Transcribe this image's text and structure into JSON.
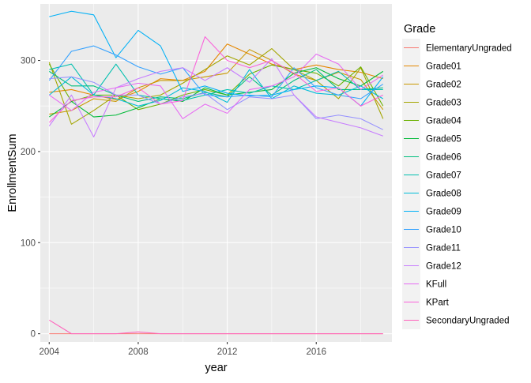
{
  "chart_data": {
    "type": "line",
    "xlabel": "year",
    "ylabel": "EnrollmentSum",
    "xlim": [
      2003.6,
      2019.4
    ],
    "ylim": [
      -9,
      362
    ],
    "x_ticks": [
      2004,
      2008,
      2012,
      2016
    ],
    "y_ticks": [
      0,
      100,
      200,
      300
    ],
    "grid": true,
    "panel_background": "#EBEBEB",
    "legend": {
      "title": "Grade",
      "position": "right"
    },
    "x": [
      2004,
      2005,
      2006,
      2007,
      2008,
      2009,
      2010,
      2011,
      2012,
      2013,
      2014,
      2015,
      2016,
      2017,
      2018,
      2019
    ],
    "series": [
      {
        "name": "ElementaryUngraded",
        "color": "#F8766D",
        "values": [
          0,
          0,
          0,
          0,
          0,
          0,
          0,
          0,
          0,
          0,
          0,
          0,
          0,
          0,
          0,
          0
        ]
      },
      {
        "name": "Grade01",
        "color": "#E58700",
        "values": [
          265,
          268,
          262,
          257,
          266,
          280,
          278,
          288,
          318,
          307,
          296,
          290,
          295,
          290,
          287,
          280
        ]
      },
      {
        "name": "Grade02",
        "color": "#C99800",
        "values": [
          241,
          245,
          258,
          255,
          270,
          278,
          278,
          282,
          286,
          312,
          300,
          285,
          278,
          287,
          279,
          246
        ]
      },
      {
        "name": "Grade03",
        "color": "#A3A500",
        "values": [
          298,
          230,
          245,
          262,
          258,
          262,
          275,
          290,
          305,
          295,
          313,
          290,
          278,
          258,
          292,
          236
        ]
      },
      {
        "name": "Grade04",
        "color": "#6BB100",
        "values": [
          296,
          255,
          262,
          262,
          246,
          252,
          262,
          268,
          262,
          285,
          295,
          290,
          286,
          272,
          293,
          250
        ]
      },
      {
        "name": "Grade05",
        "color": "#00BA38",
        "values": [
          238,
          255,
          238,
          240,
          248,
          258,
          255,
          270,
          262,
          265,
          268,
          286,
          292,
          280,
          272,
          288
        ]
      },
      {
        "name": "Grade06",
        "color": "#00BF7D",
        "values": [
          288,
          272,
          272,
          262,
          255,
          260,
          258,
          265,
          260,
          282,
          262,
          278,
          290,
          268,
          268,
          270
        ]
      },
      {
        "name": "Grade07",
        "color": "#00C0AF",
        "values": [
          290,
          296,
          262,
          296,
          262,
          258,
          256,
          262,
          268,
          264,
          272,
          268,
          278,
          288,
          268,
          268
        ]
      },
      {
        "name": "Grade08",
        "color": "#00BCD8",
        "values": [
          262,
          282,
          262,
          258,
          250,
          256,
          270,
          266,
          254,
          290,
          258,
          272,
          264,
          262,
          272,
          258
        ]
      },
      {
        "name": "Grade09",
        "color": "#00B0F6",
        "values": [
          348,
          354,
          350,
          303,
          333,
          316,
          266,
          272,
          264,
          261,
          262,
          268,
          272,
          270,
          250,
          282
        ]
      },
      {
        "name": "Grade10",
        "color": "#35A2FF",
        "values": [
          278,
          310,
          316,
          306,
          293,
          285,
          292,
          262,
          260,
          262,
          260,
          292,
          270,
          262,
          258,
          274
        ]
      },
      {
        "name": "Grade11",
        "color": "#9590FF",
        "values": [
          280,
          282,
          276,
          262,
          262,
          252,
          260,
          264,
          246,
          260,
          258,
          262,
          236,
          240,
          236,
          224
        ]
      },
      {
        "name": "Grade12",
        "color": "#C77CFF",
        "values": [
          228,
          262,
          216,
          270,
          280,
          288,
          292,
          278,
          292,
          276,
          302,
          262,
          238,
          232,
          226,
          217
        ]
      },
      {
        "name": "KFull",
        "color": "#E76BF3",
        "values": [
          262,
          245,
          265,
          270,
          275,
          272,
          236,
          252,
          242,
          268,
          272,
          282,
          307,
          296,
          268,
          284
        ]
      },
      {
        "name": "KPart",
        "color": "#FA62DB",
        "values": [
          232,
          256,
          260,
          260,
          270,
          252,
          256,
          326,
          300,
          292,
          300,
          286,
          266,
          270,
          250,
          262
        ]
      },
      {
        "name": "SecondaryUngraded",
        "color": "#FF62BC",
        "values": [
          15,
          0,
          0,
          0,
          2,
          0,
          0,
          0,
          0,
          0,
          0,
          0,
          0,
          0,
          0,
          0
        ]
      }
    ]
  }
}
